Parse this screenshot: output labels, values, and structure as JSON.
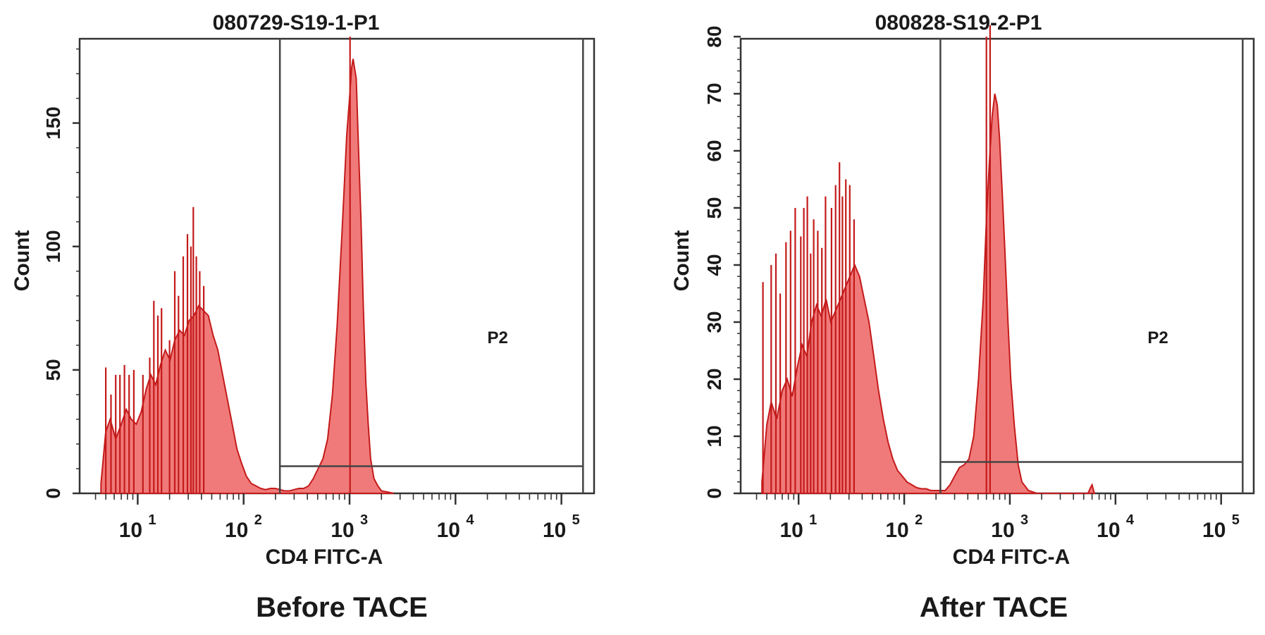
{
  "chart_data": [
    {
      "type": "histogram",
      "title": "080729-S19-1-P1",
      "xlabel": "CD4 FITC-A",
      "ylabel": "Count",
      "caption": "Before TACE",
      "x_scale": "log",
      "x_ticks": [
        {
          "value": 10,
          "base": "10",
          "exp": "1"
        },
        {
          "value": 100,
          "base": "10",
          "exp": "2"
        },
        {
          "value": 1000,
          "base": "10",
          "exp": "3"
        },
        {
          "value": 10000,
          "base": "10",
          "exp": "4"
        },
        {
          "value": 100000,
          "base": "10",
          "exp": "5"
        }
      ],
      "xlim": [
        3.2,
        180000
      ],
      "ylim": [
        0,
        185
      ],
      "y_ticks": [
        0,
        50,
        100,
        150
      ],
      "gate": {
        "label": "P2",
        "x_start": 220,
        "x_end": 160000,
        "level": 11
      },
      "fill_color": "#f07a7a",
      "line_color": "#c41a1a",
      "bins": [
        [
          4.5,
          4
        ],
        [
          5.0,
          25
        ],
        [
          5.5,
          30
        ],
        [
          6.2,
          22
        ],
        [
          7.0,
          28
        ],
        [
          7.8,
          34
        ],
        [
          8.7,
          30
        ],
        [
          9.7,
          28
        ],
        [
          10.8,
          33
        ],
        [
          12,
          42
        ],
        [
          13.3,
          48
        ],
        [
          14.8,
          44
        ],
        [
          16.4,
          52
        ],
        [
          18.2,
          58
        ],
        [
          20.2,
          54
        ],
        [
          22.4,
          62
        ],
        [
          24.9,
          66
        ],
        [
          27.6,
          64
        ],
        [
          30.6,
          70
        ],
        [
          34,
          72
        ],
        [
          37.7,
          76
        ],
        [
          41.8,
          74
        ],
        [
          46.4,
          72
        ],
        [
          51.5,
          64
        ],
        [
          57.1,
          58
        ],
        [
          63.4,
          48
        ],
        [
          70.3,
          38
        ],
        [
          78,
          28
        ],
        [
          86.5,
          18
        ],
        [
          96,
          12
        ],
        [
          106,
          7
        ],
        [
          118,
          4
        ],
        [
          131,
          3
        ],
        [
          145,
          2
        ],
        [
          161,
          1.5
        ],
        [
          179,
          2
        ],
        [
          198,
          2
        ],
        [
          220,
          1.5
        ],
        [
          244,
          1
        ],
        [
          271,
          1
        ],
        [
          300,
          1.5
        ],
        [
          333,
          2
        ],
        [
          369,
          2
        ],
        [
          410,
          3
        ],
        [
          455,
          6
        ],
        [
          505,
          10
        ],
        [
          560,
          14
        ],
        [
          621,
          22
        ],
        [
          689,
          40
        ],
        [
          764,
          68
        ],
        [
          848,
          105
        ],
        [
          940,
          145
        ],
        [
          1000,
          160
        ],
        [
          1043,
          172
        ],
        [
          1080,
          176
        ],
        [
          1157,
          168
        ],
        [
          1214,
          140
        ],
        [
          1284,
          110
        ],
        [
          1350,
          75
        ],
        [
          1424,
          45
        ],
        [
          1500,
          28
        ],
        [
          1580,
          14
        ],
        [
          1700,
          6
        ],
        [
          1850,
          3
        ],
        [
          2000,
          1
        ],
        [
          2300,
          0.5
        ],
        [
          2600,
          0
        ]
      ],
      "spikes": [
        [
          5.0,
          51
        ],
        [
          5.6,
          40
        ],
        [
          6.2,
          48
        ],
        [
          6.8,
          48
        ],
        [
          7.5,
          52
        ],
        [
          8.3,
          48
        ],
        [
          9.2,
          50
        ],
        [
          11.2,
          48
        ],
        [
          13.0,
          55
        ],
        [
          14.2,
          78
        ],
        [
          15.5,
          72
        ],
        [
          16.8,
          75
        ],
        [
          20.0,
          62
        ],
        [
          22.4,
          90
        ],
        [
          24.3,
          80
        ],
        [
          26.9,
          96
        ],
        [
          29.5,
          105
        ],
        [
          31.8,
          100
        ],
        [
          33.5,
          116
        ],
        [
          35.8,
          96
        ],
        [
          38.5,
          90
        ],
        [
          42.0,
          84
        ],
        [
          1010,
          185
        ]
      ]
    },
    {
      "type": "histogram",
      "title": "080828-S19-2-P1",
      "xlabel": "CD4 FITC-A",
      "ylabel": "Count",
      "caption": "After TACE",
      "x_scale": "log",
      "x_ticks": [
        {
          "value": 10,
          "base": "10",
          "exp": "1"
        },
        {
          "value": 100,
          "base": "10",
          "exp": "2"
        },
        {
          "value": 1000,
          "base": "10",
          "exp": "3"
        },
        {
          "value": 10000,
          "base": "10",
          "exp": "4"
        },
        {
          "value": 100000,
          "base": "10",
          "exp": "5"
        }
      ],
      "xlim": [
        3.2,
        180000
      ],
      "ylim": [
        0,
        80
      ],
      "y_ticks": [
        0,
        10,
        20,
        30,
        40,
        50,
        60,
        70,
        80
      ],
      "gate": {
        "label": "P2",
        "x_start": 220,
        "x_end": 160000,
        "level": 5.5
      },
      "fill_color": "#f07a7a",
      "line_color": "#c41a1a",
      "bins": [
        [
          4.5,
          2
        ],
        [
          5.0,
          12
        ],
        [
          5.5,
          16
        ],
        [
          6.2,
          13
        ],
        [
          7.0,
          18
        ],
        [
          7.8,
          20
        ],
        [
          8.7,
          17
        ],
        [
          9.7,
          22
        ],
        [
          10.8,
          26
        ],
        [
          12,
          24
        ],
        [
          13.3,
          30
        ],
        [
          14.8,
          33
        ],
        [
          16.4,
          31
        ],
        [
          18.2,
          34
        ],
        [
          20.2,
          30
        ],
        [
          22.4,
          32
        ],
        [
          24.9,
          34
        ],
        [
          27.6,
          36
        ],
        [
          30.6,
          38
        ],
        [
          34,
          40
        ],
        [
          37.7,
          38
        ],
        [
          41.8,
          34
        ],
        [
          46.4,
          30
        ],
        [
          51.5,
          24
        ],
        [
          57.1,
          18
        ],
        [
          63.4,
          13
        ],
        [
          70.3,
          9
        ],
        [
          78,
          6
        ],
        [
          86.5,
          4
        ],
        [
          96,
          3
        ],
        [
          106,
          2
        ],
        [
          118,
          1.5
        ],
        [
          131,
          1
        ],
        [
          145,
          0.8
        ],
        [
          161,
          0.8
        ],
        [
          179,
          0.5
        ],
        [
          198,
          0.5
        ],
        [
          220,
          0.5
        ],
        [
          244,
          0.5
        ],
        [
          271,
          1.5
        ],
        [
          300,
          3
        ],
        [
          333,
          4.5
        ],
        [
          369,
          5
        ],
        [
          410,
          6
        ],
        [
          455,
          10
        ],
        [
          505,
          20
        ],
        [
          560,
          34
        ],
        [
          600,
          48
        ],
        [
          640,
          58
        ],
        [
          680,
          66
        ],
        [
          720,
          70
        ],
        [
          760,
          68
        ],
        [
          800,
          62
        ],
        [
          850,
          52
        ],
        [
          900,
          42
        ],
        [
          960,
          30
        ],
        [
          1020,
          20
        ],
        [
          1100,
          12
        ],
        [
          1200,
          5
        ],
        [
          1300,
          2
        ],
        [
          1500,
          0.5
        ],
        [
          1800,
          0
        ],
        [
          5500,
          0
        ],
        [
          5800,
          1
        ],
        [
          6000,
          1.5
        ],
        [
          6300,
          0
        ]
      ],
      "spikes": [
        [
          4.6,
          37
        ],
        [
          5.5,
          40
        ],
        [
          6.1,
          42
        ],
        [
          6.7,
          35
        ],
        [
          7.6,
          44
        ],
        [
          8.4,
          46
        ],
        [
          9.3,
          50
        ],
        [
          10.5,
          45
        ],
        [
          11.2,
          50
        ],
        [
          12.1,
          52
        ],
        [
          13.0,
          42
        ],
        [
          13.9,
          48
        ],
        [
          15.2,
          46
        ],
        [
          16.6,
          43
        ],
        [
          18.0,
          52
        ],
        [
          20.5,
          50
        ],
        [
          22.4,
          54
        ],
        [
          24.4,
          58
        ],
        [
          26.0,
          52
        ],
        [
          28.0,
          55
        ],
        [
          30.5,
          54
        ],
        [
          33.5,
          48
        ],
        [
          600,
          80
        ],
        [
          650,
          82
        ]
      ]
    }
  ]
}
